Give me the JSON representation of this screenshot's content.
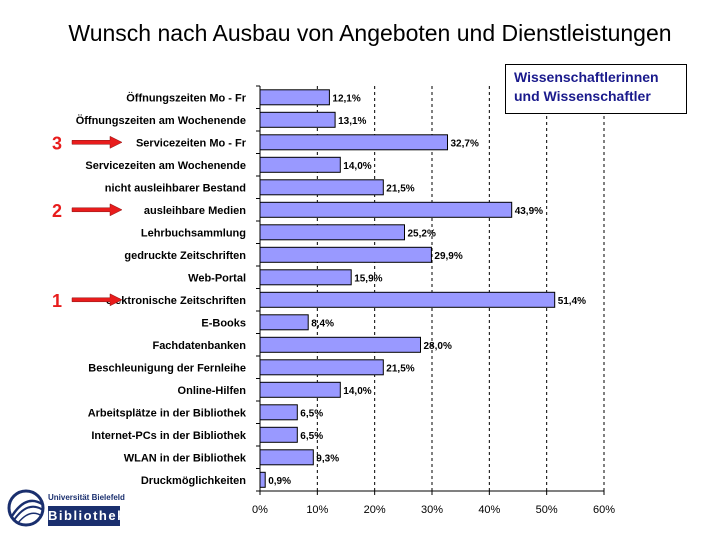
{
  "title": "Wunsch nach Ausbau von Angeboten und Dienstleistungen",
  "legend": {
    "line1": "Wissenschaftlerinnen",
    "line2": "und Wissenschaftler"
  },
  "logo": {
    "university": "Universität Bielefeld",
    "name": "Bibliothek"
  },
  "colors": {
    "bar": "#9999ff",
    "bar_stroke": "#000000",
    "rank_arrow": "#e81c1c",
    "legend_text": "#1a1a8c"
  },
  "rank_markers": [
    {
      "rank": "3",
      "category": "Servicezeiten Mo - Fr"
    },
    {
      "rank": "2",
      "category": "ausleihbare Medien"
    },
    {
      "rank": "1",
      "category": "elektronische Zeitschriften"
    }
  ],
  "chart_data": {
    "type": "bar",
    "orientation": "horizontal",
    "categories": [
      "Öffnungszeiten Mo - Fr",
      "Öffnungszeiten am Wochenende",
      "Servicezeiten Mo - Fr",
      "Servicezeiten am Wochenende",
      "nicht ausleihbarer Bestand",
      "ausleihbare Medien",
      "Lehrbuchsammlung",
      "gedruckte Zeitschriften",
      "Web-Portal",
      "elektronische Zeitschriften",
      "E-Books",
      "Fachdatenbanken",
      "Beschleunigung der Fernleihe",
      "Online-Hilfen",
      "Arbeitsplätze in der Bibliothek",
      "Internet-PCs in der Bibliothek",
      "WLAN in der Bibliothek",
      "Druckmöglichkeiten"
    ],
    "values": [
      12.1,
      13.1,
      32.7,
      14.0,
      21.5,
      43.9,
      25.2,
      29.9,
      15.9,
      51.4,
      8.4,
      28.0,
      21.5,
      14.0,
      6.5,
      6.5,
      9.3,
      0.9
    ],
    "value_labels": [
      "12,1%",
      "13,1%",
      "32,7%",
      "14,0%",
      "21,5%",
      "43,9%",
      "25,2%",
      "29,9%",
      "15,9%",
      "51,4%",
      "8,4%",
      "28,0%",
      "21,5%",
      "14,0%",
      "6,5%",
      "6,5%",
      "9,3%",
      "0,9%"
    ],
    "xticks": [
      "0%",
      "10%",
      "20%",
      "30%",
      "40%",
      "50%",
      "60%"
    ],
    "xlim": [
      0,
      60
    ],
    "grid": "vertical dashed",
    "legend_position": "top-right"
  }
}
